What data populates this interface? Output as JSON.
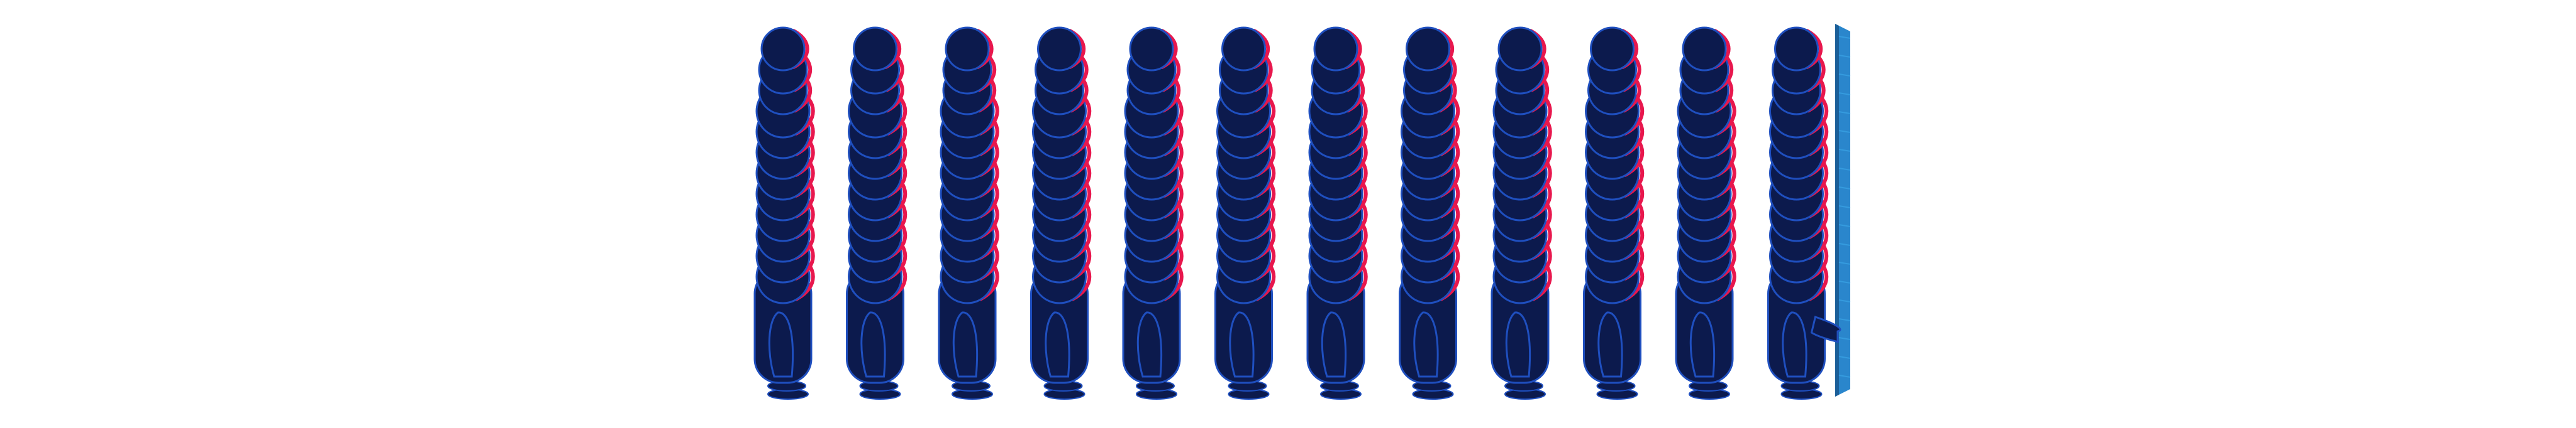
{
  "scene": {
    "figure_count": 12,
    "colors": {
      "background": "#ffffff",
      "body_fill": "#0c1a4d",
      "body_outline": "#1f4fbf",
      "accent": "#e8174d",
      "glass_light": "#3aa4e6",
      "glass_mid": "#2a86cc",
      "glass_dark": "#1b5f99"
    },
    "icons": [
      "stacked-person-figure-icon",
      "glass-door-panel-icon"
    ]
  }
}
